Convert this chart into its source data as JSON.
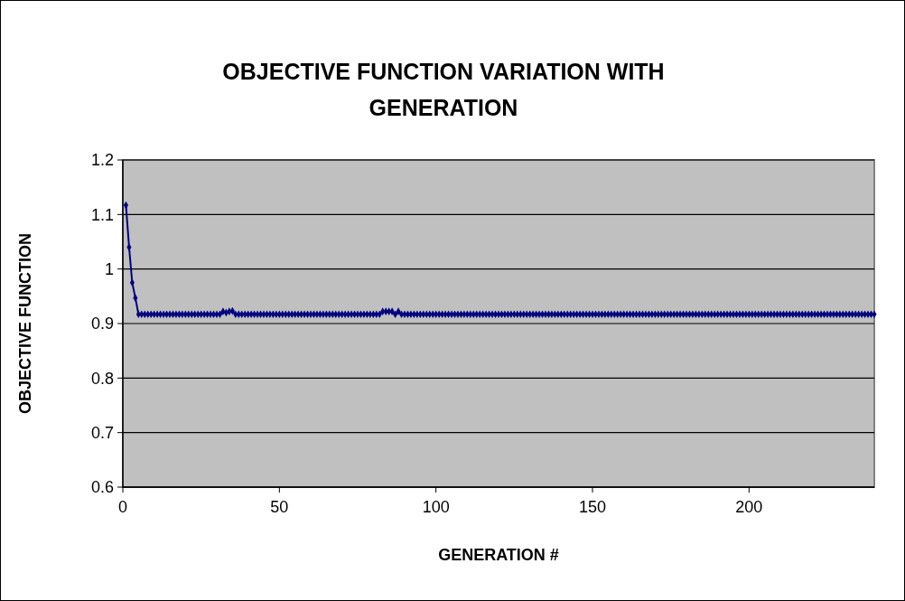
{
  "chart_data": {
    "type": "line",
    "title": "OBJECTIVE FUNCTION VARIATION WITH GENERATION",
    "xlabel": "GENERATION #",
    "ylabel": "OBJECTIVE FUNCTION",
    "xlim": [
      0,
      240
    ],
    "xticks": [
      0,
      50,
      100,
      150,
      200
    ],
    "ylim": [
      0.6,
      1.2
    ],
    "yticks": [
      0.6,
      0.7,
      0.8,
      0.9,
      1,
      1.1,
      1.2
    ],
    "grid": "y",
    "marker": "diamond",
    "line_style": "solid",
    "series": [
      {
        "color": "#000080",
        "x": [
          1,
          2,
          3,
          4,
          5,
          6,
          7,
          8,
          9,
          10,
          11,
          12,
          13,
          14,
          15,
          16,
          17,
          18,
          19,
          20,
          21,
          22,
          23,
          24,
          25,
          26,
          27,
          28,
          29,
          30,
          31,
          32,
          33,
          34,
          35,
          36,
          37,
          38,
          39,
          40,
          41,
          42,
          43,
          44,
          45,
          46,
          47,
          48,
          49,
          50,
          51,
          52,
          53,
          54,
          55,
          56,
          57,
          58,
          59,
          60,
          61,
          62,
          63,
          64,
          65,
          66,
          67,
          68,
          69,
          70,
          71,
          72,
          73,
          74,
          75,
          76,
          77,
          78,
          79,
          80,
          81,
          82,
          83,
          84,
          85,
          86,
          87,
          88,
          89,
          90,
          91,
          92,
          93,
          94,
          95,
          96,
          97,
          98,
          99,
          100,
          101,
          102,
          103,
          104,
          105,
          106,
          107,
          108,
          109,
          110,
          111,
          112,
          113,
          114,
          115,
          116,
          117,
          118,
          119,
          120,
          121,
          122,
          123,
          124,
          125,
          126,
          127,
          128,
          129,
          130,
          131,
          132,
          133,
          134,
          135,
          136,
          137,
          138,
          139,
          140,
          141,
          142,
          143,
          144,
          145,
          146,
          147,
          148,
          149,
          150,
          151,
          152,
          153,
          154,
          155,
          156,
          157,
          158,
          159,
          160,
          161,
          162,
          163,
          164,
          165,
          166,
          167,
          168,
          169,
          170,
          171,
          172,
          173,
          174,
          175,
          176,
          177,
          178,
          179,
          180,
          181,
          182,
          183,
          184,
          185,
          186,
          187,
          188,
          189,
          190,
          191,
          192,
          193,
          194,
          195,
          196,
          197,
          198,
          199,
          200,
          201,
          202,
          203,
          204,
          205,
          206,
          207,
          208,
          209,
          210,
          211,
          212,
          213,
          214,
          215,
          216,
          217,
          218,
          219,
          220,
          221,
          222,
          223,
          224,
          225,
          226,
          227,
          228,
          229,
          230,
          231,
          232,
          233,
          234,
          235,
          236,
          237,
          238,
          239,
          240
        ],
        "values": [
          1.117,
          1.04,
          0.975,
          0.947,
          0.917,
          0.917,
          0.917,
          0.917,
          0.917,
          0.917,
          0.917,
          0.917,
          0.917,
          0.917,
          0.917,
          0.917,
          0.917,
          0.917,
          0.917,
          0.917,
          0.917,
          0.917,
          0.917,
          0.917,
          0.917,
          0.917,
          0.917,
          0.917,
          0.917,
          0.917,
          0.917,
          0.922,
          0.92,
          0.922,
          0.923,
          0.917,
          0.917,
          0.917,
          0.917,
          0.917,
          0.917,
          0.917,
          0.917,
          0.917,
          0.917,
          0.917,
          0.917,
          0.917,
          0.917,
          0.917,
          0.917,
          0.917,
          0.917,
          0.917,
          0.917,
          0.917,
          0.917,
          0.917,
          0.917,
          0.917,
          0.917,
          0.917,
          0.917,
          0.917,
          0.917,
          0.917,
          0.917,
          0.917,
          0.917,
          0.917,
          0.917,
          0.917,
          0.917,
          0.917,
          0.917,
          0.917,
          0.917,
          0.917,
          0.917,
          0.917,
          0.917,
          0.917,
          0.922,
          0.922,
          0.922,
          0.922,
          0.917,
          0.922,
          0.917,
          0.917,
          0.917,
          0.917,
          0.917,
          0.917,
          0.917,
          0.917,
          0.917,
          0.917,
          0.917,
          0.917,
          0.917,
          0.917,
          0.917,
          0.917,
          0.917,
          0.917,
          0.917,
          0.917,
          0.917,
          0.917,
          0.917,
          0.917,
          0.917,
          0.917,
          0.917,
          0.917,
          0.917,
          0.917,
          0.917,
          0.917,
          0.917,
          0.917,
          0.917,
          0.917,
          0.917,
          0.917,
          0.917,
          0.917,
          0.917,
          0.917,
          0.917,
          0.917,
          0.917,
          0.917,
          0.917,
          0.917,
          0.917,
          0.917,
          0.917,
          0.917,
          0.917,
          0.917,
          0.917,
          0.917,
          0.917,
          0.917,
          0.917,
          0.917,
          0.917,
          0.917,
          0.917,
          0.917,
          0.917,
          0.917,
          0.917,
          0.917,
          0.917,
          0.917,
          0.917,
          0.917,
          0.917,
          0.917,
          0.917,
          0.917,
          0.917,
          0.917,
          0.917,
          0.917,
          0.917,
          0.917,
          0.917,
          0.917,
          0.917,
          0.917,
          0.917,
          0.917,
          0.917,
          0.917,
          0.917,
          0.917,
          0.917,
          0.917,
          0.917,
          0.917,
          0.917,
          0.917,
          0.917,
          0.917,
          0.917,
          0.917,
          0.917,
          0.917,
          0.917,
          0.917,
          0.917,
          0.917,
          0.917,
          0.917,
          0.917,
          0.917,
          0.917,
          0.917,
          0.917,
          0.917,
          0.917,
          0.917,
          0.917,
          0.917,
          0.917,
          0.917,
          0.917,
          0.917,
          0.917,
          0.917,
          0.917,
          0.917,
          0.917,
          0.917,
          0.917,
          0.917,
          0.917,
          0.917,
          0.917,
          0.917,
          0.917,
          0.917,
          0.917,
          0.917,
          0.917,
          0.917,
          0.917,
          0.917,
          0.917,
          0.917,
          0.917,
          0.917,
          0.917,
          0.917,
          0.917,
          0.917
        ]
      }
    ]
  }
}
